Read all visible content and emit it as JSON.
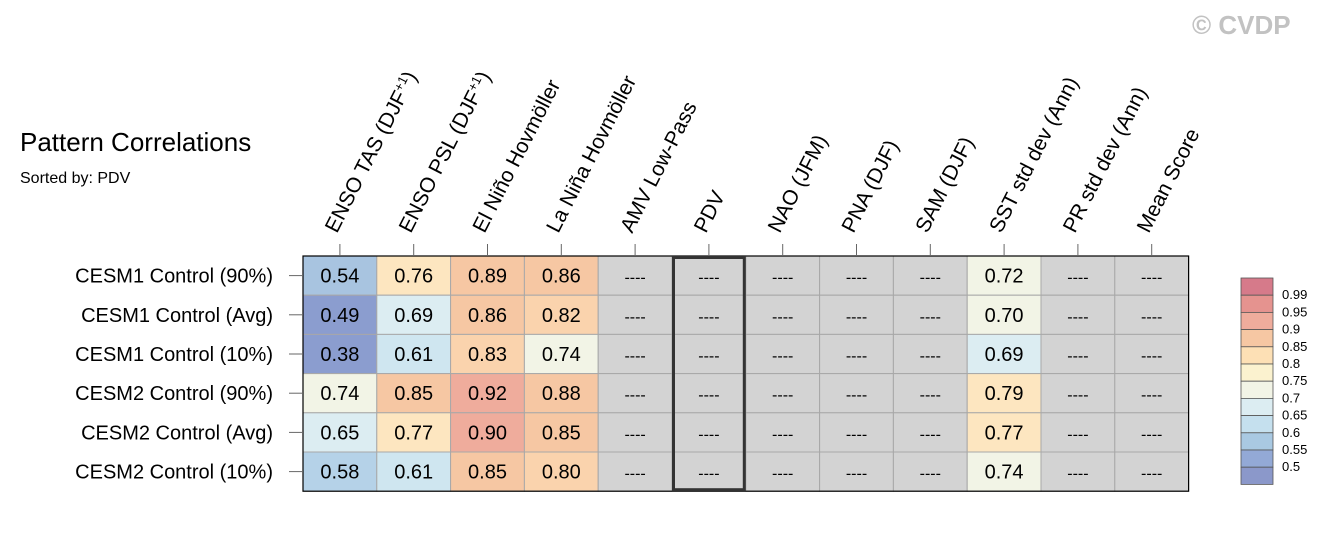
{
  "title": "Pattern Correlations",
  "subtitle": "Sorted by: PDV",
  "watermark": "© CVDP",
  "chart_data": {
    "type": "heatmap",
    "columns": [
      {
        "base": "ENSO TAS (DJF",
        "sup": "+1",
        "tail": ")"
      },
      {
        "base": "ENSO PSL (DJF",
        "sup": "+1",
        "tail": ")"
      },
      {
        "base": "El Niño Hovmöller",
        "sup": "",
        "tail": ""
      },
      {
        "base": "La Niña Hovmöller",
        "sup": "",
        "tail": ""
      },
      {
        "base": "AMV Low-Pass",
        "sup": "",
        "tail": ""
      },
      {
        "base": "PDV",
        "sup": "",
        "tail": ""
      },
      {
        "base": "NAO (JFM)",
        "sup": "",
        "tail": ""
      },
      {
        "base": "PNA (DJF)",
        "sup": "",
        "tail": ""
      },
      {
        "base": "SAM (DJF)",
        "sup": "",
        "tail": ""
      },
      {
        "base": "SST std dev (Ann)",
        "sup": "",
        "tail": ""
      },
      {
        "base": "PR std dev (Ann)",
        "sup": "",
        "tail": ""
      },
      {
        "base": "Mean Score",
        "sup": "",
        "tail": ""
      }
    ],
    "rows": [
      "CESM1 Control (90%)",
      "CESM1 Control (Avg)",
      "CESM1 Control (10%)",
      "CESM2 Control (90%)",
      "CESM2 Control (Avg)",
      "CESM2 Control (10%)"
    ],
    "values": [
      [
        "0.54",
        "0.76",
        "0.89",
        "0.86",
        "----",
        "----",
        "----",
        "----",
        "----",
        "0.72",
        "----",
        "----"
      ],
      [
        "0.49",
        "0.69",
        "0.86",
        "0.82",
        "----",
        "----",
        "----",
        "----",
        "----",
        "0.70",
        "----",
        "----"
      ],
      [
        "0.38",
        "0.61",
        "0.83",
        "0.74",
        "----",
        "----",
        "----",
        "----",
        "----",
        "0.69",
        "----",
        "----"
      ],
      [
        "0.74",
        "0.85",
        "0.92",
        "0.88",
        "----",
        "----",
        "----",
        "----",
        "----",
        "0.79",
        "----",
        "----"
      ],
      [
        "0.65",
        "0.77",
        "0.90",
        "0.85",
        "----",
        "----",
        "----",
        "----",
        "----",
        "0.77",
        "----",
        "----"
      ],
      [
        "0.58",
        "0.61",
        "0.85",
        "0.80",
        "----",
        "----",
        "----",
        "----",
        "----",
        "0.74",
        "----",
        "----"
      ]
    ],
    "highlighted_column": "PDV",
    "missing_color": "#d3d3d3",
    "colorbar": {
      "labels": [
        "0.99",
        "0.95",
        "0.9",
        "0.85",
        "0.8",
        "0.75",
        "0.7",
        "0.65",
        "0.6",
        "0.55",
        "0.5"
      ],
      "colors": [
        "#d67a8a",
        "#e5938f",
        "#efac9c",
        "#f6c7a3",
        "#fde0b5",
        "#fbf2cf",
        "#f2f4e6",
        "#dcedf2",
        "#c5e0ee",
        "#a9c9e2",
        "#93a9d6",
        "#8b98ca"
      ]
    },
    "value_bins": [
      {
        "min": 0.99,
        "color": "#d67a8a"
      },
      {
        "min": 0.95,
        "color": "#e5938f"
      },
      {
        "min": 0.9,
        "color": "#efac9c"
      },
      {
        "min": 0.85,
        "color": "#f6c7a3"
      },
      {
        "min": 0.8,
        "color": "#fad3ad"
      },
      {
        "min": 0.75,
        "color": "#fde6c0"
      },
      {
        "min": 0.7,
        "color": "#f2f4e6"
      },
      {
        "min": 0.65,
        "color": "#dcedf2"
      },
      {
        "min": 0.6,
        "color": "#cfe6f0"
      },
      {
        "min": 0.55,
        "color": "#b5d2e8"
      },
      {
        "min": 0.5,
        "color": "#a8c4e0"
      },
      {
        "min": 0.0,
        "color": "#8b9dcf"
      }
    ]
  }
}
